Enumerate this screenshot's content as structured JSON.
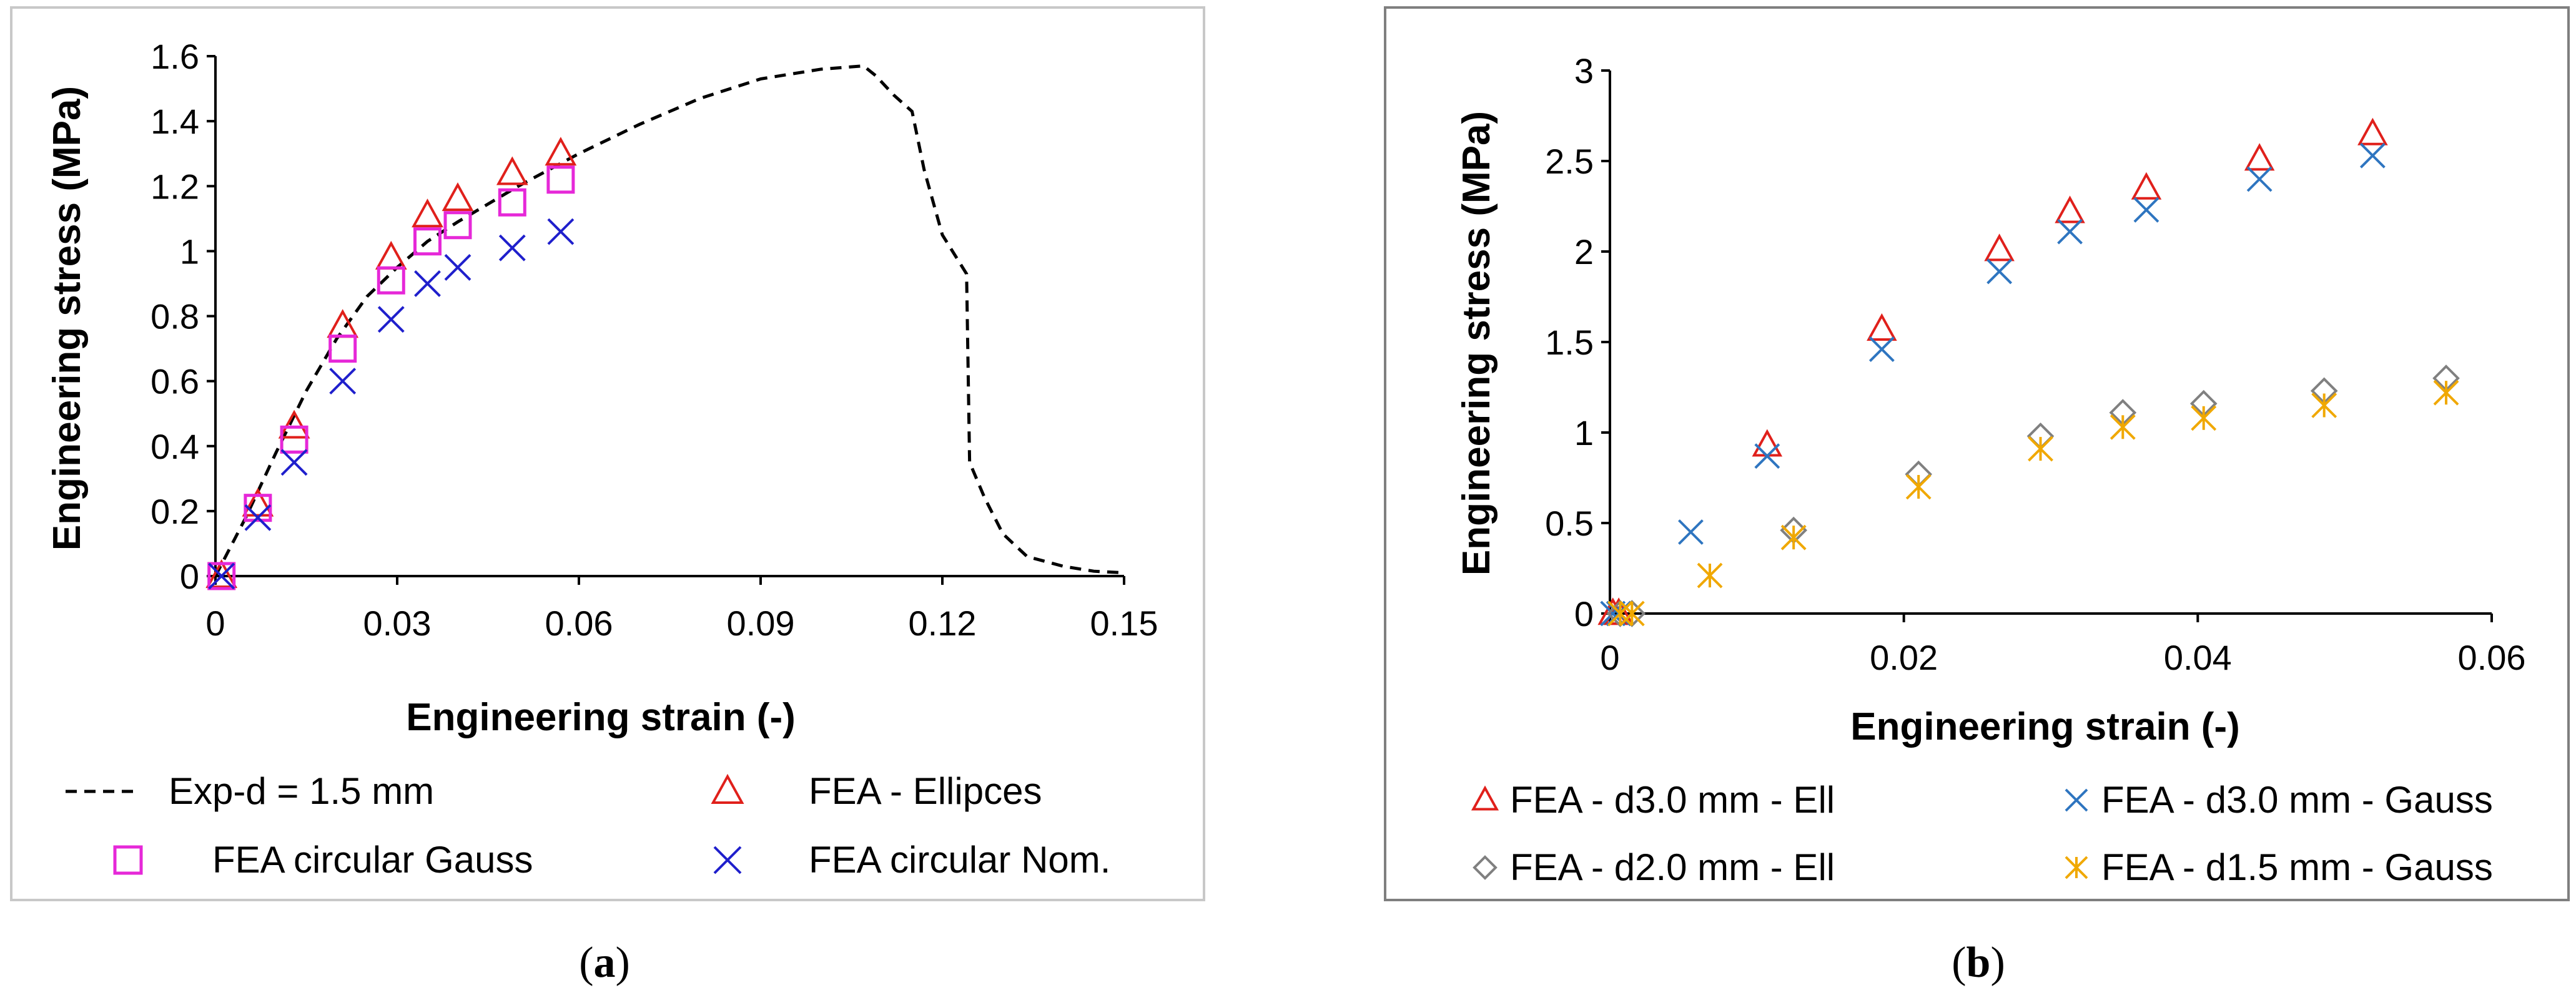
{
  "chart_data": [
    {
      "panel": "a",
      "caption_letter": "a",
      "type": "scatter",
      "xlabel": "Engineering strain (-)",
      "ylabel": "Engineering stress (MPa)",
      "xlim": [
        0,
        0.15
      ],
      "ylim": [
        0,
        1.6
      ],
      "xticks": [
        "0",
        "0.03",
        "0.06",
        "0.09",
        "0.12",
        "0.15"
      ],
      "xtick_values": [
        0,
        0.03,
        0.06,
        0.09,
        0.12,
        0.15
      ],
      "yticks": [
        "0",
        "0.2",
        "0.4",
        "0.6",
        "0.8",
        "1",
        "1.2",
        "1.4",
        "1.6"
      ],
      "ytick_values": [
        0,
        0.2,
        0.4,
        0.6,
        0.8,
        1.0,
        1.2,
        1.4,
        1.6
      ],
      "series": [
        {
          "name": "Exp-d = 1.5 mm",
          "style": "dashed-line",
          "color": "#000000",
          "x": [
            0,
            0.005,
            0.01,
            0.015,
            0.02,
            0.025,
            0.03,
            0.035,
            0.04,
            0.05,
            0.06,
            0.07,
            0.08,
            0.09,
            0.1,
            0.107,
            0.109,
            0.112,
            0.115,
            0.117,
            0.12,
            0.124,
            0.1245,
            0.127,
            0.13,
            0.134,
            0.14,
            0.145,
            0.15
          ],
          "y": [
            0,
            0.18,
            0.38,
            0.57,
            0.73,
            0.86,
            0.95,
            1.03,
            1.09,
            1.2,
            1.3,
            1.39,
            1.47,
            1.53,
            1.56,
            1.57,
            1.54,
            1.48,
            1.43,
            1.25,
            1.05,
            0.93,
            0.35,
            0.24,
            0.13,
            0.06,
            0.03,
            0.015,
            0.01
          ]
        },
        {
          "name": "FEA - Ellipces",
          "marker": "triangle",
          "color": "#e0201b",
          "x": [
            0.001,
            0.007,
            0.013,
            0.021,
            0.029,
            0.035,
            0.04,
            0.049,
            0.057
          ],
          "y": [
            0,
            0.22,
            0.46,
            0.77,
            0.98,
            1.11,
            1.16,
            1.24,
            1.3
          ]
        },
        {
          "name": "FEA circular Gauss",
          "marker": "square",
          "color": "#e628d8",
          "x": [
            0.001,
            0.007,
            0.013,
            0.021,
            0.029,
            0.035,
            0.04,
            0.049,
            0.057
          ],
          "y": [
            0,
            0.21,
            0.42,
            0.7,
            0.91,
            1.03,
            1.08,
            1.15,
            1.22
          ]
        },
        {
          "name": "FEA circular Nom.",
          "marker": "x",
          "color": "#1f1fcc",
          "x": [
            0.001,
            0.007,
            0.013,
            0.021,
            0.029,
            0.035,
            0.04,
            0.049,
            0.057
          ],
          "y": [
            0,
            0.18,
            0.35,
            0.6,
            0.79,
            0.9,
            0.95,
            1.01,
            1.06
          ]
        }
      ]
    },
    {
      "panel": "b",
      "caption_letter": "b",
      "type": "scatter",
      "xlabel": "Engineering strain (-)",
      "ylabel": "Engineering stress (MPa)",
      "xlim": [
        0,
        0.06
      ],
      "ylim": [
        0,
        3
      ],
      "xticks": [
        "0",
        "0.02",
        "0.04",
        "0.06"
      ],
      "xtick_values": [
        0,
        0.02,
        0.04,
        0.06
      ],
      "yticks": [
        "0",
        "0.5",
        "1",
        "1.5",
        "2",
        "2.5",
        "3"
      ],
      "ytick_values": [
        0,
        0.5,
        1,
        1.5,
        2,
        2.5,
        3
      ],
      "series": [
        {
          "name": "FEA - d3.0 mm - Ell",
          "marker": "triangle",
          "color": "#e0201b",
          "x": [
            0.0002,
            0.0006,
            0.0107,
            0.0185,
            0.0265,
            0.0313,
            0.0365,
            0.0442,
            0.0519
          ],
          "y": [
            0,
            0,
            0.93,
            1.57,
            2.01,
            2.22,
            2.35,
            2.51,
            2.65
          ]
        },
        {
          "name": "FEA - d3.0 mm - Gauss",
          "marker": "x",
          "color": "#2e75c0",
          "x": [
            0.0002,
            0.0006,
            0.0055,
            0.0107,
            0.0185,
            0.0265,
            0.0313,
            0.0365,
            0.0442,
            0.0519
          ],
          "y": [
            0,
            0,
            0.45,
            0.87,
            1.46,
            1.89,
            2.11,
            2.23,
            2.4,
            2.53
          ]
        },
        {
          "name": "FEA - d2.0 mm - Ell",
          "marker": "diamond",
          "color": "#808080",
          "x": [
            0.0007,
            0.0015,
            0.0125,
            0.021,
            0.0293,
            0.0349,
            0.0404,
            0.0486,
            0.0569
          ],
          "y": [
            0,
            0,
            0.46,
            0.77,
            0.98,
            1.11,
            1.16,
            1.23,
            1.3
          ]
        },
        {
          "name": "FEA - d1.5 mm - Gauss",
          "marker": "asterisk",
          "color": "#f0a800",
          "x": [
            0.0007,
            0.0015,
            0.0068,
            0.0125,
            0.021,
            0.0293,
            0.0349,
            0.0404,
            0.0486,
            0.0569
          ],
          "y": [
            0,
            0,
            0.21,
            0.42,
            0.7,
            0.91,
            1.03,
            1.08,
            1.15,
            1.22
          ]
        }
      ]
    }
  ]
}
